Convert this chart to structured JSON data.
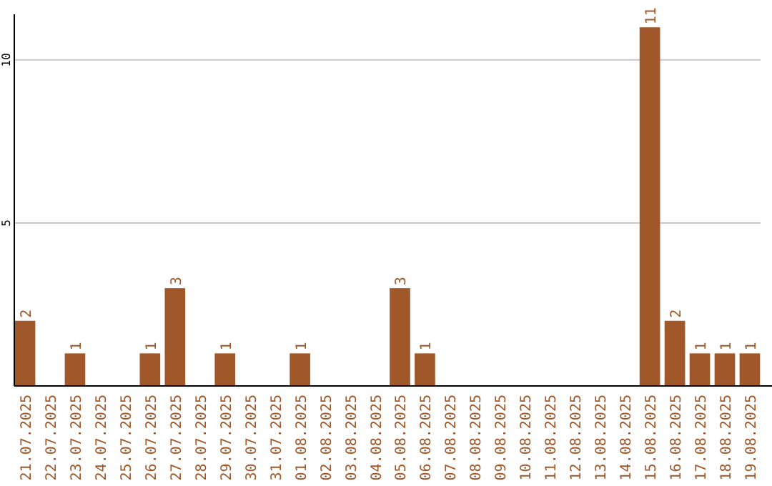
{
  "chart_data": {
    "type": "bar",
    "categories": [
      "21.07.2025",
      "22.07.2025",
      "23.07.2025",
      "24.07.2025",
      "25.07.2025",
      "26.07.2025",
      "27.07.2025",
      "28.07.2025",
      "29.07.2025",
      "30.07.2025",
      "31.07.2025",
      "01.08.2025",
      "02.08.2025",
      "03.08.2025",
      "04.08.2025",
      "05.08.2025",
      "06.08.2025",
      "07.08.2025",
      "08.08.2025",
      "09.08.2025",
      "10.08.2025",
      "11.08.2025",
      "12.08.2025",
      "13.08.2025",
      "14.08.2025",
      "15.08.2025",
      "16.08.2025",
      "17.08.2025",
      "18.08.2025",
      "19.08.2025"
    ],
    "values": [
      2,
      0,
      1,
      0,
      0,
      1,
      3,
      0,
      1,
      0,
      0,
      1,
      0,
      0,
      0,
      3,
      1,
      0,
      0,
      0,
      0,
      0,
      0,
      0,
      0,
      11,
      2,
      1,
      1,
      1
    ],
    "value_labels": [
      "2",
      null,
      "1",
      null,
      null,
      "1",
      "3",
      null,
      "1",
      null,
      null,
      "1",
      null,
      null,
      null,
      "3",
      "1",
      null,
      null,
      null,
      null,
      null,
      null,
      null,
      null,
      "11",
      "2",
      "1",
      "1",
      "1"
    ],
    "color": "#a0582a",
    "ylim": [
      0,
      11.4
    ],
    "yticks": [
      5,
      10
    ],
    "grid": "y"
  }
}
